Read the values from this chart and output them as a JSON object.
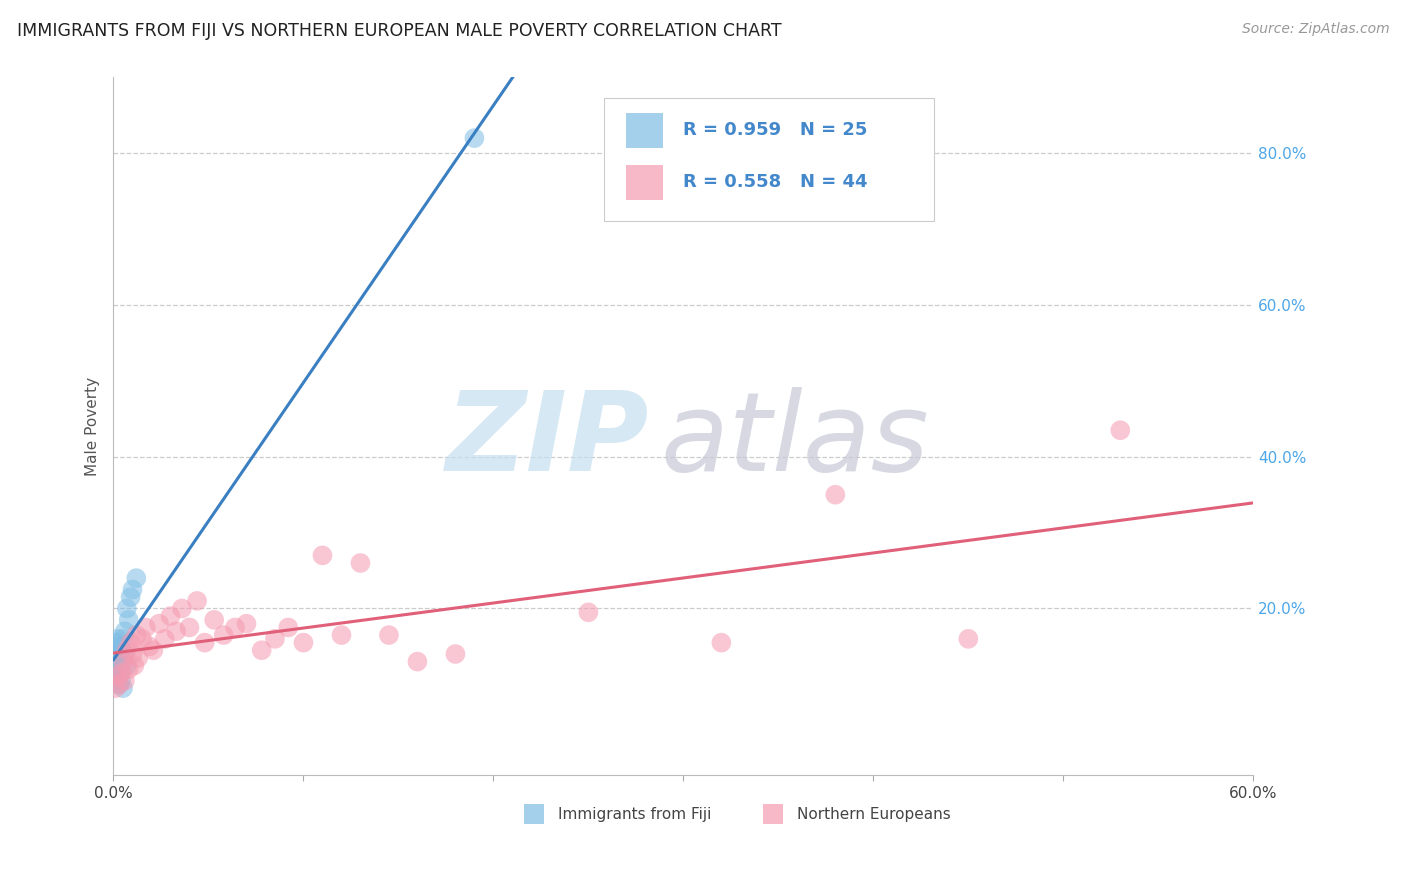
{
  "title": "IMMIGRANTS FROM FIJI VS NORTHERN EUROPEAN MALE POVERTY CORRELATION CHART",
  "source": "Source: ZipAtlas.com",
  "ylabel": "Male Poverty",
  "xlim": [
    0,
    0.6
  ],
  "ylim": [
    -0.02,
    0.9
  ],
  "xticks": [
    0.0,
    0.1,
    0.2,
    0.3,
    0.4,
    0.5,
    0.6
  ],
  "xticklabels": [
    "0.0%",
    "",
    "",
    "",
    "",
    "",
    "60.0%"
  ],
  "ytick_positions": [
    0.2,
    0.4,
    0.6,
    0.8
  ],
  "ytick_labels": [
    "20.0%",
    "40.0%",
    "60.0%",
    "80.0%"
  ],
  "fiji_color": "#7fbde4",
  "ne_color": "#f59ab0",
  "fiji_line_color": "#3a7fc1",
  "ne_line_color": "#e0607a",
  "fiji_R": 0.959,
  "fiji_N": 25,
  "ne_R": 0.558,
  "ne_N": 44,
  "watermark_zip_color": "#c5dff0",
  "watermark_atlas_color": "#c8c8d8",
  "fiji_scatter_x": [
    0.001,
    0.001,
    0.001,
    0.002,
    0.002,
    0.002,
    0.002,
    0.003,
    0.003,
    0.003,
    0.003,
    0.004,
    0.004,
    0.004,
    0.005,
    0.005,
    0.006,
    0.006,
    0.007,
    0.007,
    0.008,
    0.009,
    0.01,
    0.012,
    0.19
  ],
  "fiji_scatter_y": [
    0.13,
    0.145,
    0.155,
    0.11,
    0.125,
    0.14,
    0.16,
    0.1,
    0.115,
    0.135,
    0.15,
    0.105,
    0.12,
    0.145,
    0.095,
    0.16,
    0.14,
    0.17,
    0.125,
    0.2,
    0.185,
    0.215,
    0.225,
    0.24,
    0.82
  ],
  "ne_scatter_x": [
    0.001,
    0.002,
    0.003,
    0.004,
    0.005,
    0.006,
    0.007,
    0.008,
    0.009,
    0.01,
    0.011,
    0.012,
    0.013,
    0.015,
    0.017,
    0.019,
    0.021,
    0.024,
    0.027,
    0.03,
    0.033,
    0.036,
    0.04,
    0.044,
    0.048,
    0.053,
    0.058,
    0.064,
    0.07,
    0.078,
    0.085,
    0.092,
    0.1,
    0.11,
    0.12,
    0.13,
    0.145,
    0.16,
    0.18,
    0.25,
    0.32,
    0.38,
    0.45,
    0.53
  ],
  "ne_scatter_y": [
    0.095,
    0.11,
    0.1,
    0.115,
    0.13,
    0.105,
    0.145,
    0.12,
    0.155,
    0.14,
    0.125,
    0.165,
    0.135,
    0.16,
    0.175,
    0.15,
    0.145,
    0.18,
    0.16,
    0.19,
    0.17,
    0.2,
    0.175,
    0.21,
    0.155,
    0.185,
    0.165,
    0.175,
    0.18,
    0.145,
    0.16,
    0.175,
    0.155,
    0.27,
    0.165,
    0.26,
    0.165,
    0.13,
    0.14,
    0.195,
    0.155,
    0.35,
    0.16,
    0.435
  ]
}
